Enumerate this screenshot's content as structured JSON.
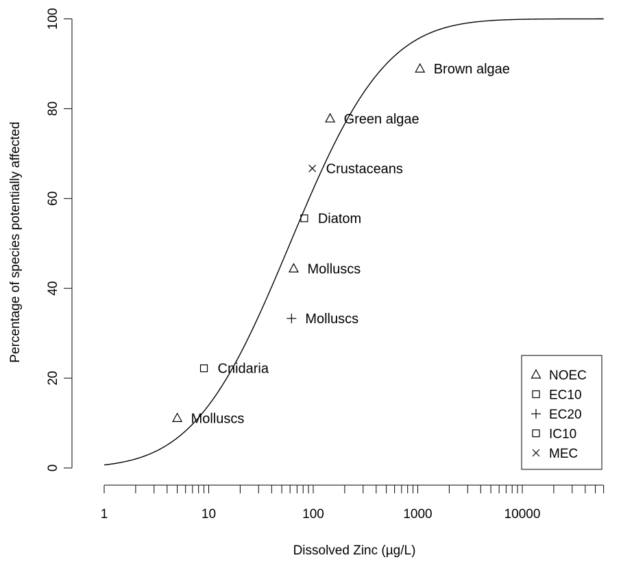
{
  "chart_data": {
    "type": "scatter",
    "xlabel": "Dissolved Zinc (µg/L)",
    "ylabel": "Percentage of species potentially affected",
    "x_scale": "log",
    "xlim": [
      1,
      60000
    ],
    "ylim": [
      0,
      100
    ],
    "x_ticks": [
      1,
      10,
      100,
      1000,
      10000
    ],
    "x_tick_labels": [
      "1",
      "10",
      "100",
      "1000",
      "10000"
    ],
    "y_ticks": [
      0,
      20,
      40,
      60,
      80,
      100
    ],
    "y_tick_labels": [
      "0",
      "20",
      "40",
      "60",
      "80",
      "100"
    ],
    "grid": false,
    "legend_position": "bottom-right",
    "series": [
      {
        "name": "NOEC",
        "marker": "triangle"
      },
      {
        "name": "EC10",
        "marker": "square"
      },
      {
        "name": "EC20",
        "marker": "plus"
      },
      {
        "name": "IC10",
        "marker": "square"
      },
      {
        "name": "MEC",
        "marker": "cross"
      }
    ],
    "points": [
      {
        "x": 5,
        "y": 11.1,
        "type": "NOEC",
        "marker": "triangle",
        "label": "Molluscs"
      },
      {
        "x": 9,
        "y": 22.2,
        "type": "EC10",
        "marker": "square",
        "label": "Cnidaria"
      },
      {
        "x": 62,
        "y": 33.3,
        "type": "EC20",
        "marker": "plus",
        "label": "Molluscs"
      },
      {
        "x": 65,
        "y": 44.4,
        "type": "NOEC",
        "marker": "triangle",
        "label": "Molluscs"
      },
      {
        "x": 82,
        "y": 55.6,
        "type": "IC10",
        "marker": "square",
        "label": "Diatom"
      },
      {
        "x": 98,
        "y": 66.7,
        "type": "MEC",
        "marker": "cross",
        "label": "Crustaceans"
      },
      {
        "x": 145,
        "y": 77.8,
        "type": "NOEC",
        "marker": "triangle",
        "label": "Green algae"
      },
      {
        "x": 1050,
        "y": 88.9,
        "type": "NOEC",
        "marker": "triangle",
        "label": "Brown algae"
      }
    ],
    "fitted_curve": {
      "model": "log-normal CDF",
      "median": 60,
      "log10_sd": 0.72
    }
  }
}
